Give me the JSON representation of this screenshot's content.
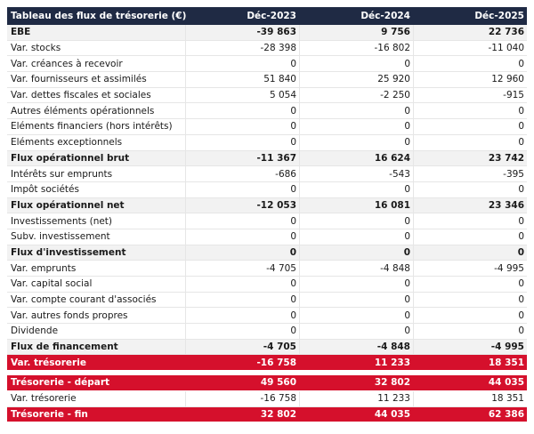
{
  "table": {
    "header": [
      "Tableau des flux de trésorerie (€)",
      "Déc-2023",
      "Déc-2024",
      "Déc-2025"
    ],
    "rows": [
      {
        "cells": [
          "EBE",
          "-39 863",
          "9 756",
          "22 736"
        ],
        "style": "bold"
      },
      {
        "cells": [
          "Var. stocks",
          "-28 398",
          "-16 802",
          "-11 040"
        ]
      },
      {
        "cells": [
          "Var. créances à recevoir",
          "0",
          "0",
          "0"
        ]
      },
      {
        "cells": [
          "Var. fournisseurs et assimilés",
          "51 840",
          "25 920",
          "12 960"
        ]
      },
      {
        "cells": [
          "Var. dettes fiscales et sociales",
          "5 054",
          "-2 250",
          "-915"
        ]
      },
      {
        "cells": [
          "Autres éléments opérationnels",
          "0",
          "0",
          "0"
        ]
      },
      {
        "cells": [
          "Eléments financiers (hors intérêts)",
          "0",
          "0",
          "0"
        ]
      },
      {
        "cells": [
          "Eléments exceptionnels",
          "0",
          "0",
          "0"
        ]
      },
      {
        "cells": [
          "Flux opérationnel brut",
          "-11 367",
          "16 624",
          "23 742"
        ],
        "style": "bold"
      },
      {
        "cells": [
          "Intérêts sur emprunts",
          "-686",
          "-543",
          "-395"
        ]
      },
      {
        "cells": [
          "Impôt sociétés",
          "0",
          "0",
          "0"
        ]
      },
      {
        "cells": [
          "Flux opérationnel net",
          "-12 053",
          "16 081",
          "23 346"
        ],
        "style": "bold"
      },
      {
        "cells": [
          "Investissements (net)",
          "0",
          "0",
          "0"
        ]
      },
      {
        "cells": [
          "Subv. investissement",
          "0",
          "0",
          "0"
        ]
      },
      {
        "cells": [
          "Flux d'investissement",
          "0",
          "0",
          "0"
        ],
        "style": "bold"
      },
      {
        "cells": [
          "Var. emprunts",
          "-4 705",
          "-4 848",
          "-4 995"
        ]
      },
      {
        "cells": [
          "Var. capital social",
          "0",
          "0",
          "0"
        ]
      },
      {
        "cells": [
          "Var. compte courant d'associés",
          "0",
          "0",
          "0"
        ]
      },
      {
        "cells": [
          "Var. autres fonds propres",
          "0",
          "0",
          "0"
        ]
      },
      {
        "cells": [
          "Dividende",
          "0",
          "0",
          "0"
        ]
      },
      {
        "cells": [
          "Flux de financement",
          "-4 705",
          "-4 848",
          "-4 995"
        ],
        "style": "bold"
      },
      {
        "cells": [
          "Var. trésorerie",
          "-16 758",
          "11 233",
          "18 351"
        ],
        "style": "red"
      },
      {
        "cells": [
          "Trésorerie - départ",
          "49 560",
          "32 802",
          "44 035"
        ],
        "style": "red"
      },
      {
        "cells": [
          "Var. trésorerie",
          "-16 758",
          "11 233",
          "18 351"
        ]
      },
      {
        "cells": [
          "Trésorerie - fin",
          "32 802",
          "44 035",
          "62 386"
        ],
        "style": "red"
      }
    ]
  }
}
